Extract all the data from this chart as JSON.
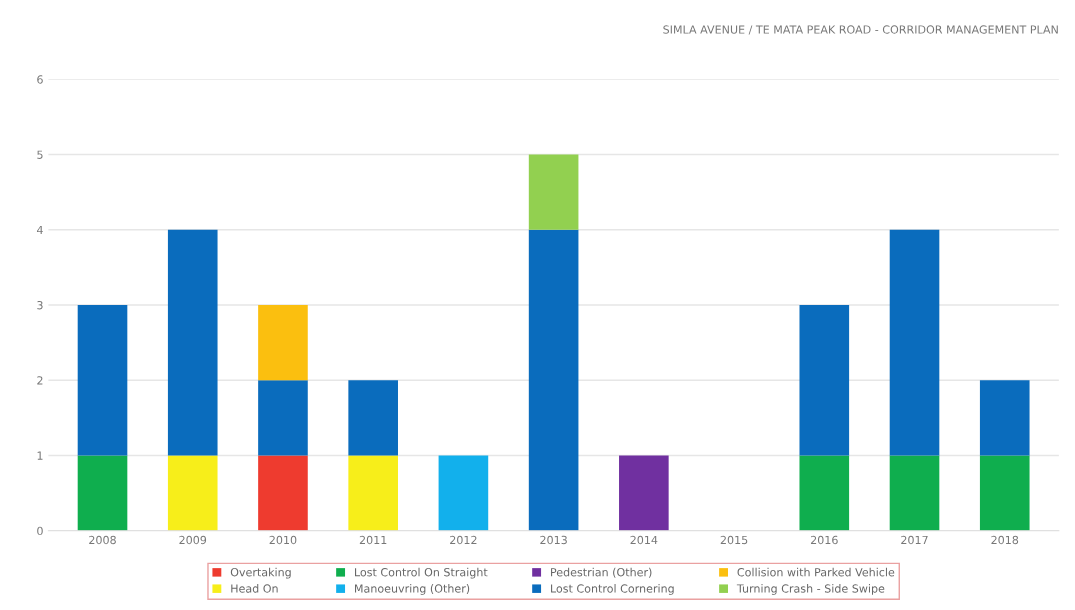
{
  "chart_data": {
    "type": "bar",
    "stacked": true,
    "title": "SIMLA AVENUE / TE MATA PEAK ROAD - CORRIDOR MANAGEMENT PLAN",
    "categories": [
      "2008",
      "2009",
      "2010",
      "2011",
      "2012",
      "2013",
      "2014",
      "2015",
      "2016",
      "2017",
      "2018"
    ],
    "series": [
      {
        "name": "Overtaking",
        "color": "#ee3b2f",
        "values": [
          null,
          null,
          1,
          null,
          null,
          null,
          null,
          null,
          null,
          null,
          null
        ]
      },
      {
        "name": "Head On",
        "color": "#f7ee1a",
        "values": [
          null,
          1,
          null,
          1,
          null,
          null,
          null,
          null,
          null,
          null,
          null
        ]
      },
      {
        "name": "Lost Control On Straight",
        "color": "#0fae4e",
        "values": [
          1,
          null,
          null,
          null,
          null,
          null,
          null,
          null,
          1,
          1,
          1
        ]
      },
      {
        "name": "Manoeuvring (Other)",
        "color": "#12b0ec",
        "values": [
          null,
          null,
          null,
          null,
          1,
          null,
          null,
          null,
          null,
          null,
          null
        ]
      },
      {
        "name": "Pedestrian (Other)",
        "color": "#7030a0",
        "values": [
          null,
          null,
          null,
          null,
          null,
          null,
          1,
          null,
          null,
          null,
          null
        ]
      },
      {
        "name": "Lost Control Cornering",
        "color": "#0a6cbd",
        "values": [
          2,
          3,
          1,
          1,
          null,
          4,
          null,
          null,
          2,
          3,
          1
        ]
      },
      {
        "name": "Collision with Parked Vehicle",
        "color": "#fbbf0f",
        "values": [
          null,
          null,
          1,
          null,
          null,
          null,
          null,
          null,
          null,
          null,
          null
        ]
      },
      {
        "name": "Turning Crash - Side Swipe",
        "color": "#92d050",
        "values": [
          null,
          null,
          null,
          null,
          null,
          1,
          null,
          null,
          null,
          null,
          null
        ]
      }
    ],
    "ylim": [
      0,
      6
    ],
    "yticks": [
      0,
      1,
      2,
      3,
      4,
      5,
      6
    ],
    "grid": "y",
    "legend": "bottom"
  }
}
